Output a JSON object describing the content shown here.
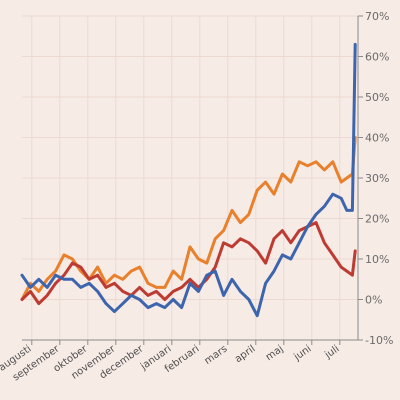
{
  "chart_data": {
    "type": "line",
    "title": "",
    "xlabel": "",
    "ylabel": "",
    "ylim": [
      -10,
      70
    ],
    "y_ticks": [
      -10,
      0,
      10,
      20,
      30,
      40,
      50,
      60,
      70
    ],
    "y_tick_labels": [
      "-10%",
      "0%",
      "10%",
      "20%",
      "30%",
      "40%",
      "50%",
      "60%",
      "70%"
    ],
    "y_axis_side": "right",
    "grid": true,
    "legend": "none",
    "xlim": [
      0,
      12
    ],
    "x_ticks": [
      0.35,
      1.35,
      2.35,
      3.35,
      4.35,
      5.35,
      6.35,
      7.35,
      8.35,
      9.35,
      10.35,
      11.35
    ],
    "x_tick_labels": [
      "augusti",
      "september",
      "oktober",
      "november",
      "december",
      "januari",
      "februari",
      "mars",
      "april",
      "maj",
      "juni",
      "juli"
    ],
    "series": [
      {
        "color": "#e8802c",
        "x": [
          0,
          0.3,
          0.6,
          0.9,
          1.2,
          1.5,
          1.8,
          2.1,
          2.4,
          2.7,
          3.0,
          3.3,
          3.6,
          3.9,
          4.2,
          4.5,
          4.8,
          5.1,
          5.4,
          5.7,
          6.0,
          6.3,
          6.6,
          6.9,
          7.2,
          7.5,
          7.8,
          8.1,
          8.4,
          8.7,
          9.0,
          9.3,
          9.6,
          9.9,
          10.2,
          10.5,
          10.8,
          11.1,
          11.4,
          11.6,
          11.8,
          11.9
        ],
        "values": [
          0,
          4,
          2,
          5,
          7,
          11,
          10,
          7,
          5,
          8,
          4,
          6,
          5,
          7,
          8,
          4,
          3,
          3,
          7,
          5,
          13,
          10,
          9,
          15,
          17,
          22,
          19,
          21,
          27,
          29,
          26,
          31,
          29,
          34,
          33,
          34,
          32,
          34,
          29,
          30,
          31,
          40
        ]
      },
      {
        "color": "#be3b32",
        "x": [
          0,
          0.3,
          0.6,
          0.9,
          1.2,
          1.5,
          1.8,
          2.1,
          2.4,
          2.7,
          3.0,
          3.3,
          3.6,
          3.9,
          4.2,
          4.5,
          4.8,
          5.1,
          5.4,
          5.7,
          6.0,
          6.3,
          6.6,
          6.9,
          7.2,
          7.5,
          7.8,
          8.1,
          8.4,
          8.7,
          9.0,
          9.3,
          9.6,
          9.9,
          10.2,
          10.5,
          10.8,
          11.1,
          11.4,
          11.6,
          11.8,
          11.9
        ],
        "values": [
          0,
          2,
          -1,
          1,
          4,
          6,
          9,
          8,
          5,
          6,
          3,
          4,
          2,
          1,
          3,
          1,
          2,
          0,
          2,
          3,
          5,
          3,
          5,
          8,
          14,
          13,
          15,
          14,
          12,
          9,
          15,
          17,
          14,
          17,
          18,
          19,
          14,
          11,
          8,
          7,
          6,
          12
        ]
      },
      {
        "color": "#3d65ad",
        "x": [
          0,
          0.3,
          0.6,
          0.9,
          1.2,
          1.5,
          1.8,
          2.1,
          2.4,
          2.7,
          3.0,
          3.3,
          3.6,
          3.9,
          4.2,
          4.5,
          4.8,
          5.1,
          5.4,
          5.7,
          6.0,
          6.3,
          6.6,
          6.9,
          7.2,
          7.5,
          7.8,
          8.1,
          8.4,
          8.7,
          9.0,
          9.3,
          9.6,
          9.9,
          10.2,
          10.5,
          10.8,
          11.1,
          11.4,
          11.6,
          11.8,
          11.9
        ],
        "values": [
          6,
          3,
          5,
          3,
          6,
          5,
          5,
          3,
          4,
          2,
          -1,
          -3,
          -1,
          1,
          0,
          -2,
          -1,
          -2,
          0,
          -2,
          4,
          2,
          6,
          7,
          1,
          5,
          2,
          0,
          -4,
          4,
          7,
          11,
          10,
          14,
          18,
          21,
          23,
          26,
          25,
          22,
          22,
          63
        ]
      }
    ]
  }
}
